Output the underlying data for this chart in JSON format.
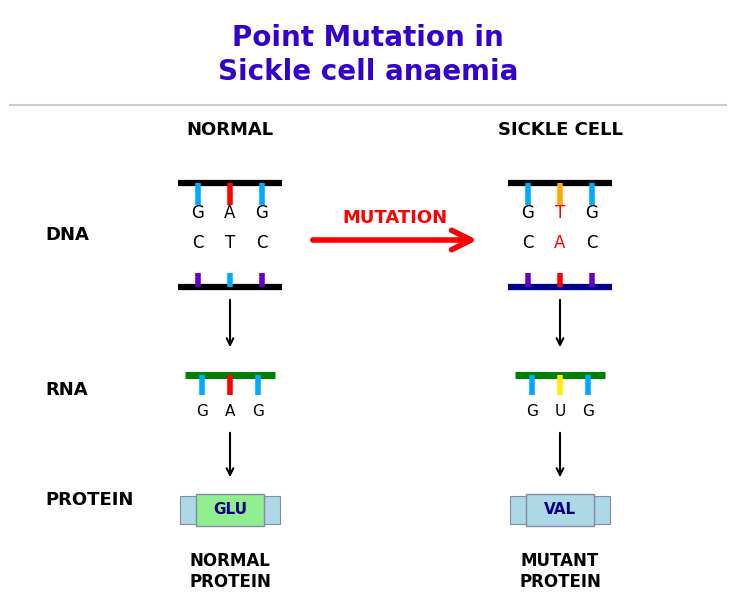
{
  "title_line1": "Point Mutation in",
  "title_line2": "Sickle cell anaemia",
  "title_color": "#3300cc",
  "title_fontsize": 20,
  "bg_color": "#ffffff",
  "normal_label": "NORMAL",
  "sickle_label": "SICKLE CELL",
  "mutation_text": "MUTATION",
  "normal_dna_top": [
    "G",
    "A",
    "G"
  ],
  "normal_dna_bottom": [
    "C",
    "T",
    "C"
  ],
  "sickle_dna_top": [
    "G",
    "T",
    "G"
  ],
  "sickle_dna_bottom": [
    "C",
    "A",
    "C"
  ],
  "normal_rna": [
    "G",
    "A",
    "G"
  ],
  "sickle_rna": [
    "G",
    "U",
    "G"
  ],
  "normal_protein": "GLU",
  "sickle_protein": "VAL",
  "normal_protein_label": "NORMAL\nPROTEIN",
  "sickle_protein_label": "MUTANT\nPROTEIN",
  "normal_dna_top_colors": [
    "#00aaff",
    "#ff0000",
    "#00aaff"
  ],
  "normal_dna_bottom_colors": [
    "#6600cc",
    "#00aaff",
    "#6600cc"
  ],
  "sickle_dna_top_colors": [
    "#00aaff",
    "#ffaa00",
    "#00aaff"
  ],
  "sickle_dna_bottom_colors": [
    "#6600cc",
    "#ff0000",
    "#6600cc"
  ],
  "normal_top_bar_color": "#000000",
  "normal_bottom_bar_color": "#000000",
  "sickle_top_bar_color": "#000000",
  "sickle_bottom_bar_color": "#00008b",
  "normal_rna_colors": [
    "#00aaff",
    "#ff0000",
    "#00aaff"
  ],
  "sickle_rna_colors": [
    "#00aaff",
    "#ffee00",
    "#00aaff"
  ],
  "normal_rna_bar_color": "#008000",
  "sickle_rna_bar_color": "#008000",
  "glu_bg_color": "#90ee90",
  "val_bg_color": "#add8e6",
  "side_tab_color": "#add8e6",
  "protein_text_color": "#000080",
  "row_label_color": "#000000"
}
